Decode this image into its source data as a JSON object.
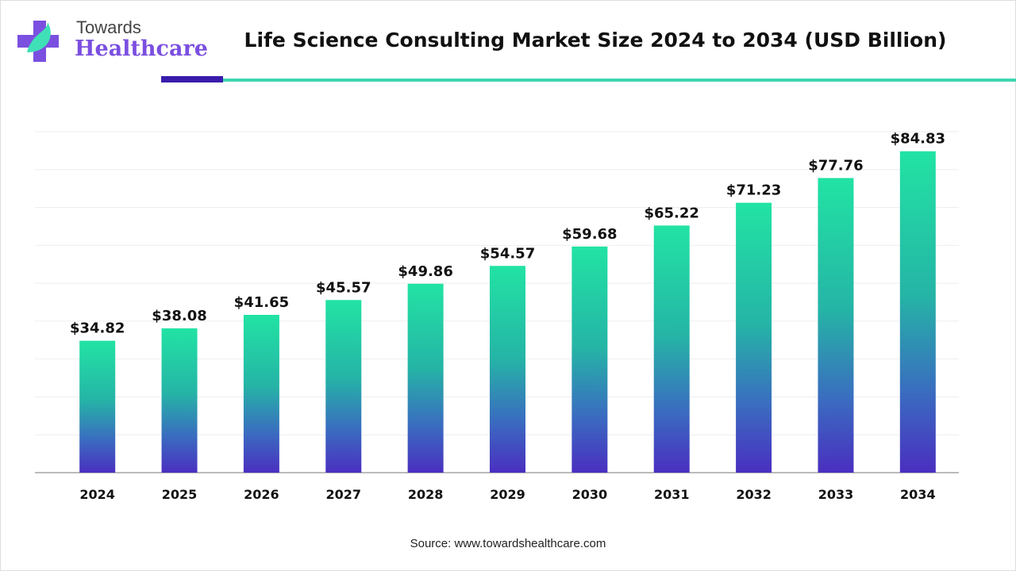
{
  "logo": {
    "line1": "Towards",
    "line2": "Healthcare"
  },
  "title": "Life Science Consulting Market Size 2024 to 2034 (USD Billion)",
  "source": "Source: www.towardshealthcare.com",
  "colors": {
    "bar_top": "#22e3a4",
    "bar_bottom": "#4a2fc0",
    "accent_dark": "#3a1cab",
    "accent_teal": "#3fd6b0"
  },
  "chart_data": {
    "type": "bar",
    "title": "Life Science Consulting Market Size 2024 to 2034 (USD Billion)",
    "categories": [
      "2024",
      "2025",
      "2026",
      "2027",
      "2028",
      "2029",
      "2030",
      "2031",
      "2032",
      "2033",
      "2034"
    ],
    "values": [
      34.82,
      38.08,
      41.65,
      45.57,
      49.86,
      54.57,
      59.68,
      65.22,
      71.23,
      77.76,
      84.83
    ],
    "data_labels": [
      "$34.82",
      "$38.08",
      "$41.65",
      "$45.57",
      "$49.86",
      "$54.57",
      "$59.68",
      "$65.22",
      "$71.23",
      "$77.76",
      "$84.83"
    ],
    "xlabel": "",
    "ylabel": "",
    "ylim": [
      0,
      90
    ],
    "grid": true,
    "legend": "none"
  }
}
